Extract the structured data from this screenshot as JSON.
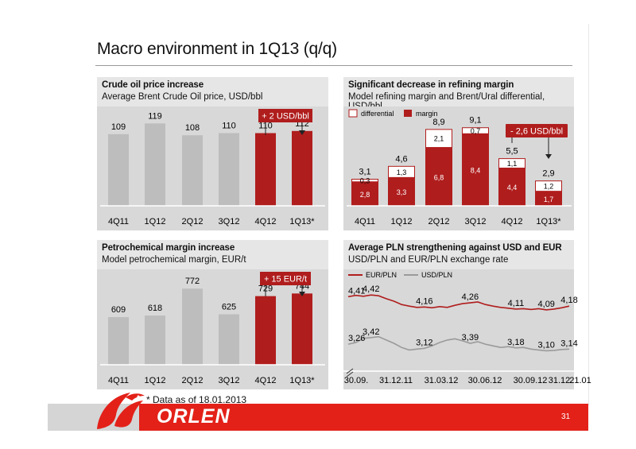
{
  "page": {
    "title": "Macro environment in 1Q13 (q/q)",
    "footnote": "* Data as of 18.01.2013",
    "page_number": "31",
    "brand": "ORLEN",
    "colors": {
      "red": "#e32119",
      "dark_red": "#b01d1d",
      "gray_bar": "#bdbdbd",
      "panel_bg": "#d8d8d8",
      "header_bg": "#e6e6e6"
    }
  },
  "panels": {
    "crude": {
      "title": "Crude oil price increase",
      "subtitle": "Average Brent Crude Oil price, USD/bbl",
      "callout": "+ 2 USD/bbl"
    },
    "refining": {
      "title": "Significant decrease in refining margin",
      "subtitle": "Model refining margin and Brent/Ural differential, USD/bbl",
      "callout": "- 2,6 USD/bbl"
    },
    "petro": {
      "title": "Petrochemical margin increase",
      "subtitle": "Model petrochemical margin, EUR/t",
      "callout": "+ 15 EUR/t"
    },
    "fx": {
      "title": "Average PLN strengthening against USD and EUR",
      "subtitle": "USD/PLN and EUR/PLN exchange rate"
    }
  },
  "chart_data": [
    {
      "id": "crude",
      "type": "bar",
      "title": "Crude oil price increase",
      "subtitle": "Average Brent Crude Oil price, USD/bbl",
      "categories": [
        "4Q11",
        "1Q12",
        "2Q12",
        "3Q12",
        "4Q12",
        "1Q13*"
      ],
      "values": [
        109,
        119,
        108,
        110,
        110,
        112
      ],
      "highlight": [
        false,
        false,
        false,
        false,
        true,
        true
      ],
      "ylim": [
        0,
        150
      ]
    },
    {
      "id": "refining",
      "type": "bar",
      "stacked": true,
      "title": "Significant decrease in refining margin",
      "subtitle": "Model refining margin and Brent/Ural differential, USD/bbl",
      "categories": [
        "4Q11",
        "1Q12",
        "2Q12",
        "3Q12",
        "4Q12",
        "1Q13*"
      ],
      "series": [
        {
          "name": "margin",
          "values": [
            2.8,
            3.3,
            6.8,
            8.4,
            4.4,
            1.7
          ]
        },
        {
          "name": "differential",
          "values": [
            0.3,
            1.3,
            2.1,
            0.7,
            1.1,
            1.2
          ]
        }
      ],
      "value_labels": {
        "margin": [
          "2,8",
          "3,3",
          "6,8",
          "8,4",
          "4,4",
          "1,7"
        ],
        "differential": [
          "0,3",
          "1,3",
          "2,1",
          "0,7",
          "1,1",
          "1,2"
        ],
        "total": [
          "3,1",
          "4,6",
          "8,9",
          "9,1",
          "5,5",
          "2,9"
        ]
      },
      "legend": "top-left",
      "ylim": [
        0,
        11
      ]
    },
    {
      "id": "petro",
      "type": "bar",
      "title": "Petrochemical margin increase",
      "subtitle": "Model petrochemical margin, EUR/t",
      "categories": [
        "4Q11",
        "1Q12",
        "2Q12",
        "3Q12",
        "4Q12",
        "1Q13*"
      ],
      "values": [
        609,
        618,
        772,
        625,
        729,
        744
      ],
      "highlight": [
        false,
        false,
        false,
        false,
        true,
        true
      ],
      "ylim": [
        0,
        1000
      ]
    },
    {
      "id": "fx",
      "type": "line",
      "title": "Average PLN strengthening against USD and EUR",
      "subtitle": "USD/PLN and EUR/PLN exchange rate",
      "x_ticks": [
        "30.09.",
        "31.12.11",
        "31.03.12",
        "30.06.12",
        "30.09.12",
        "31.12.",
        "21.01"
      ],
      "legend": "top-left",
      "ylim": [
        2.8,
        4.8
      ],
      "series": [
        {
          "name": "EUR/PLN",
          "color": "#b01d1d",
          "points": [
            4.41,
            4.44,
            4.42,
            4.45,
            4.43,
            4.36,
            4.3,
            4.22,
            4.18,
            4.15,
            4.16,
            4.14,
            4.17,
            4.15,
            4.2,
            4.24,
            4.26,
            4.28,
            4.22,
            4.18,
            4.15,
            4.13,
            4.11,
            4.12,
            4.1,
            4.12,
            4.09,
            4.11,
            4.14,
            4.18
          ],
          "labels": [
            "4,41",
            "4,42",
            "4,16",
            "4,26",
            "4,11",
            "4,09",
            "4,18"
          ]
        },
        {
          "name": "USD/PLN",
          "color": "#9a9a9a",
          "points": [
            3.26,
            3.3,
            3.4,
            3.42,
            3.44,
            3.36,
            3.28,
            3.18,
            3.12,
            3.14,
            3.16,
            3.22,
            3.3,
            3.36,
            3.39,
            3.34,
            3.28,
            3.32,
            3.26,
            3.22,
            3.18,
            3.2,
            3.17,
            3.18,
            3.14,
            3.12,
            3.1,
            3.11,
            3.13,
            3.14
          ],
          "labels": [
            "3,26",
            "3,42",
            "3,12",
            "3,39",
            "3,18",
            "3,10",
            "3,14"
          ]
        }
      ]
    }
  ]
}
